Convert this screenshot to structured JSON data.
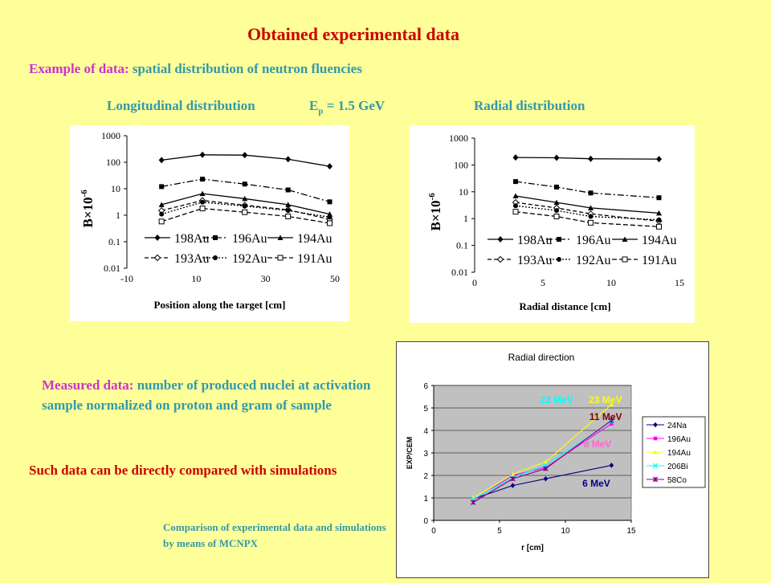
{
  "title": "Obtained experimental data",
  "example": {
    "label": "Example of data:",
    "text": "spatial distribution of neutron fluencies"
  },
  "subheads": {
    "longitudinal": "Longitudinal distribution",
    "energy": "E",
    "energy_sub": "p",
    "energy_value": " = 1.5 GeV",
    "radial": "Radial distribution"
  },
  "measured": {
    "label": "Measured data:",
    "text": " number of produced nuclei at activation sample normalized on proton and gram of sample"
  },
  "compare_text": "Such data can be directly compared with simulations",
  "mcnpx_text": "Comparison of experimental data and simulations by means of MCNPX",
  "chart_data": [
    {
      "type": "line",
      "ylabel": "B×10",
      "ylabel_exp": "-6",
      "xlabel": "Position along the target [cm]",
      "xlim": [
        -10,
        50
      ],
      "ylim": [
        0.01,
        1000
      ],
      "yscale": "log",
      "xticks": [
        -10,
        10,
        30,
        50
      ],
      "yticks": [
        "0.01",
        "0.1",
        "1",
        "10",
        "100",
        "1000"
      ],
      "legend": "bottom",
      "x": [
        0,
        11.8,
        24,
        36.5,
        48.5
      ],
      "series": [
        {
          "name": "198Au",
          "marker": "diamond",
          "dash": "",
          "values": [
            120,
            190,
            185,
            130,
            70
          ]
        },
        {
          "name": "196Au",
          "marker": "square",
          "dash": "8,3,2,3",
          "values": [
            12,
            23,
            15,
            9,
            3.2
          ]
        },
        {
          "name": "194Au",
          "marker": "triangle",
          "dash": "",
          "values": [
            2.5,
            6.5,
            4.2,
            2.5,
            1.1
          ]
        },
        {
          "name": "193Au",
          "marker": "diamond-open",
          "dash": "5,3",
          "values": [
            1.5,
            3.6,
            2.4,
            1.6,
            0.7
          ]
        },
        {
          "name": "192Au",
          "marker": "circle",
          "dash": "2,2",
          "values": [
            1.1,
            3.1,
            2.2,
            1.5,
            0.85
          ]
        },
        {
          "name": "191Au",
          "marker": "square-open",
          "dash": "6,3",
          "values": [
            0.58,
            1.8,
            1.3,
            0.9,
            0.5
          ]
        }
      ]
    },
    {
      "type": "line",
      "ylabel": "B×10",
      "ylabel_exp": "-6",
      "xlabel": "Radial distance [cm]",
      "xlim": [
        0,
        15
      ],
      "ylim": [
        0.01,
        1000
      ],
      "yscale": "log",
      "xticks": [
        0,
        5,
        10,
        15
      ],
      "yticks": [
        "0.01",
        "0.1",
        "1",
        "10",
        "100",
        "1000"
      ],
      "legend": "bottom",
      "x": [
        3,
        6,
        8.5,
        13.5
      ],
      "series": [
        {
          "name": "198Au",
          "marker": "diamond",
          "dash": "",
          "values": [
            190,
            185,
            170,
            165
          ]
        },
        {
          "name": "196Au",
          "marker": "square",
          "dash": "8,3,2,3",
          "values": [
            24,
            15,
            9,
            6
          ]
        },
        {
          "name": "194Au",
          "marker": "triangle",
          "dash": "",
          "values": [
            7,
            4,
            2.5,
            1.6
          ]
        },
        {
          "name": "193Au",
          "marker": "diamond-open",
          "dash": "5,3",
          "values": [
            4,
            2.5,
            1.5,
            0.8
          ]
        },
        {
          "name": "192Au",
          "marker": "circle",
          "dash": "2,2",
          "values": [
            3,
            2,
            1.2,
            0.9
          ]
        },
        {
          "name": "191Au",
          "marker": "square-open",
          "dash": "6,3",
          "values": [
            1.8,
            1.2,
            0.7,
            0.5
          ]
        }
      ]
    },
    {
      "type": "line",
      "title": "Radial direction",
      "xlabel": "r [cm]",
      "ylabel": "EXP/CEM",
      "xlim": [
        0,
        15
      ],
      "ylim": [
        0,
        6
      ],
      "xticks": [
        0,
        5,
        10,
        15
      ],
      "yticks": [
        0,
        1,
        2,
        3,
        4,
        5,
        6
      ],
      "legend": "right",
      "grid": true,
      "plot_bg": "#c0c0c0",
      "x": [
        3,
        6,
        8.5,
        13.5
      ],
      "series": [
        {
          "name": "24Na",
          "color": "#000080",
          "marker": "diamond",
          "values": [
            0.95,
            1.55,
            1.85,
            2.45
          ]
        },
        {
          "name": "196Au",
          "color": "#ff00ff",
          "marker": "square",
          "values": [
            0.9,
            2.0,
            2.35,
            4.3
          ]
        },
        {
          "name": "194Au",
          "color": "#ffff00",
          "marker": "triangle",
          "values": [
            1.0,
            2.05,
            2.6,
            5.15
          ]
        },
        {
          "name": "206Bi",
          "color": "#00ffff",
          "marker": "x",
          "values": [
            0.95,
            1.9,
            2.45,
            4.4
          ]
        },
        {
          "name": "58Co",
          "color": "#800080",
          "marker": "star",
          "values": [
            0.8,
            1.85,
            2.3,
            4.45
          ]
        }
      ],
      "annotations": [
        {
          "text": "23 MeV",
          "color": "#00ffff",
          "x": 10.6,
          "y": 5.35
        },
        {
          "text": "23 MeV",
          "color": "#ffff00",
          "x": 14.3,
          "y": 5.35
        },
        {
          "text": "11 MeV",
          "color": "#800000",
          "x": 14.3,
          "y": 4.6
        },
        {
          "text": "8 MeV",
          "color": "#ff66cc",
          "x": 13.5,
          "y": 3.4
        },
        {
          "text": "6 MeV",
          "color": "#000080",
          "x": 13.4,
          "y": 1.65
        }
      ]
    }
  ]
}
